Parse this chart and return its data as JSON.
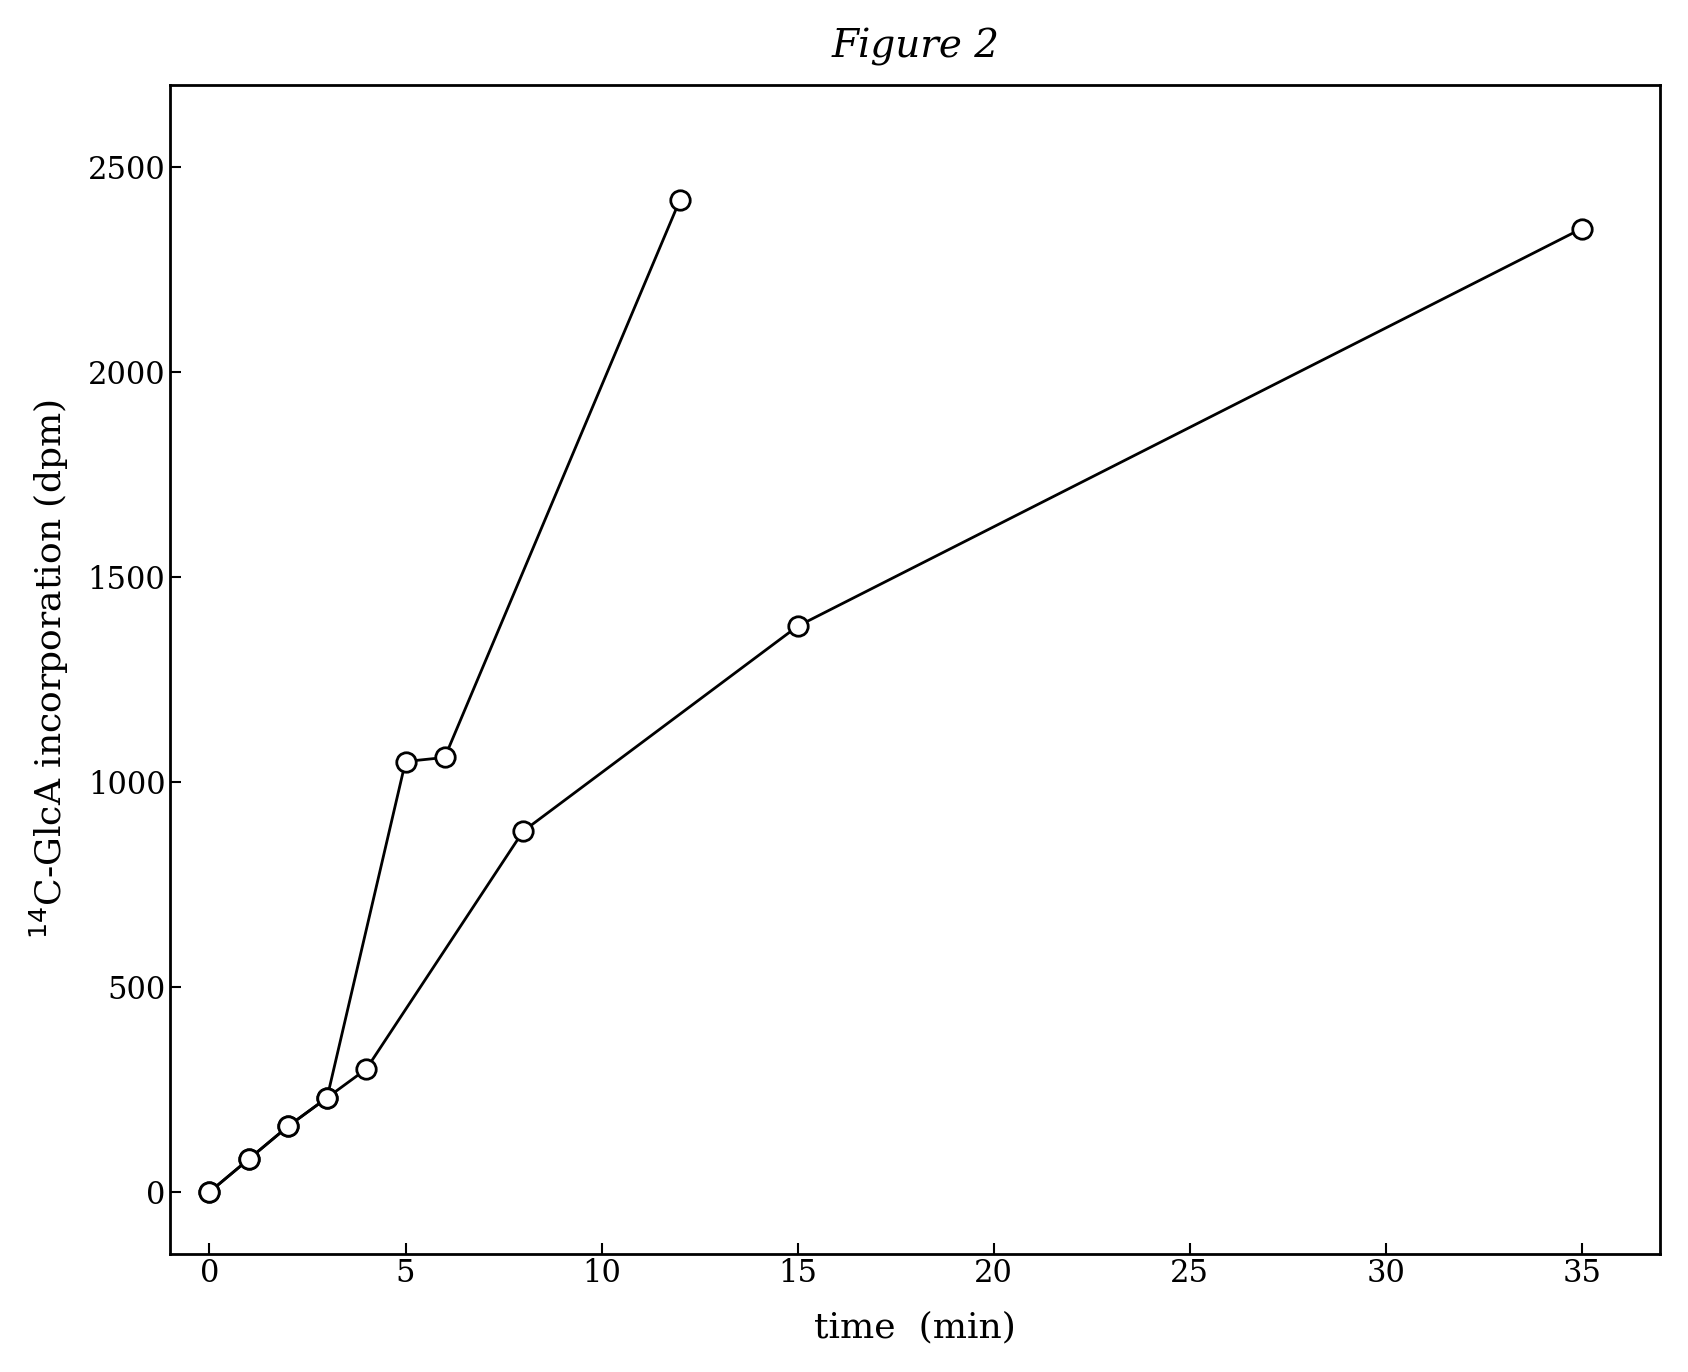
{
  "title": "Figure 2",
  "xlabel": "time  (min)",
  "ylabel": "$^{14}$C-GlcA incorporation (dpm)",
  "xlim": [
    -1,
    37
  ],
  "ylim": [
    -150,
    2700
  ],
  "xticks": [
    0,
    5,
    10,
    15,
    20,
    25,
    30,
    35
  ],
  "yticks": [
    0,
    500,
    1000,
    1500,
    2000,
    2500
  ],
  "series1_x": [
    0,
    1,
    2,
    3,
    5,
    6,
    12
  ],
  "series1_y": [
    0,
    80,
    160,
    230,
    1050,
    1060,
    2420
  ],
  "series2_x": [
    0,
    1,
    2,
    3,
    4,
    8,
    15,
    35
  ],
  "series2_y": [
    0,
    80,
    160,
    230,
    300,
    880,
    1380,
    2350
  ],
  "line_color": "#000000",
  "marker_facecolor": "#ffffff",
  "marker_edgecolor": "#000000",
  "marker_size": 14,
  "linewidth": 2.0,
  "background_color": "#ffffff",
  "title_fontsize": 28,
  "axis_label_fontsize": 26,
  "tick_fontsize": 22
}
